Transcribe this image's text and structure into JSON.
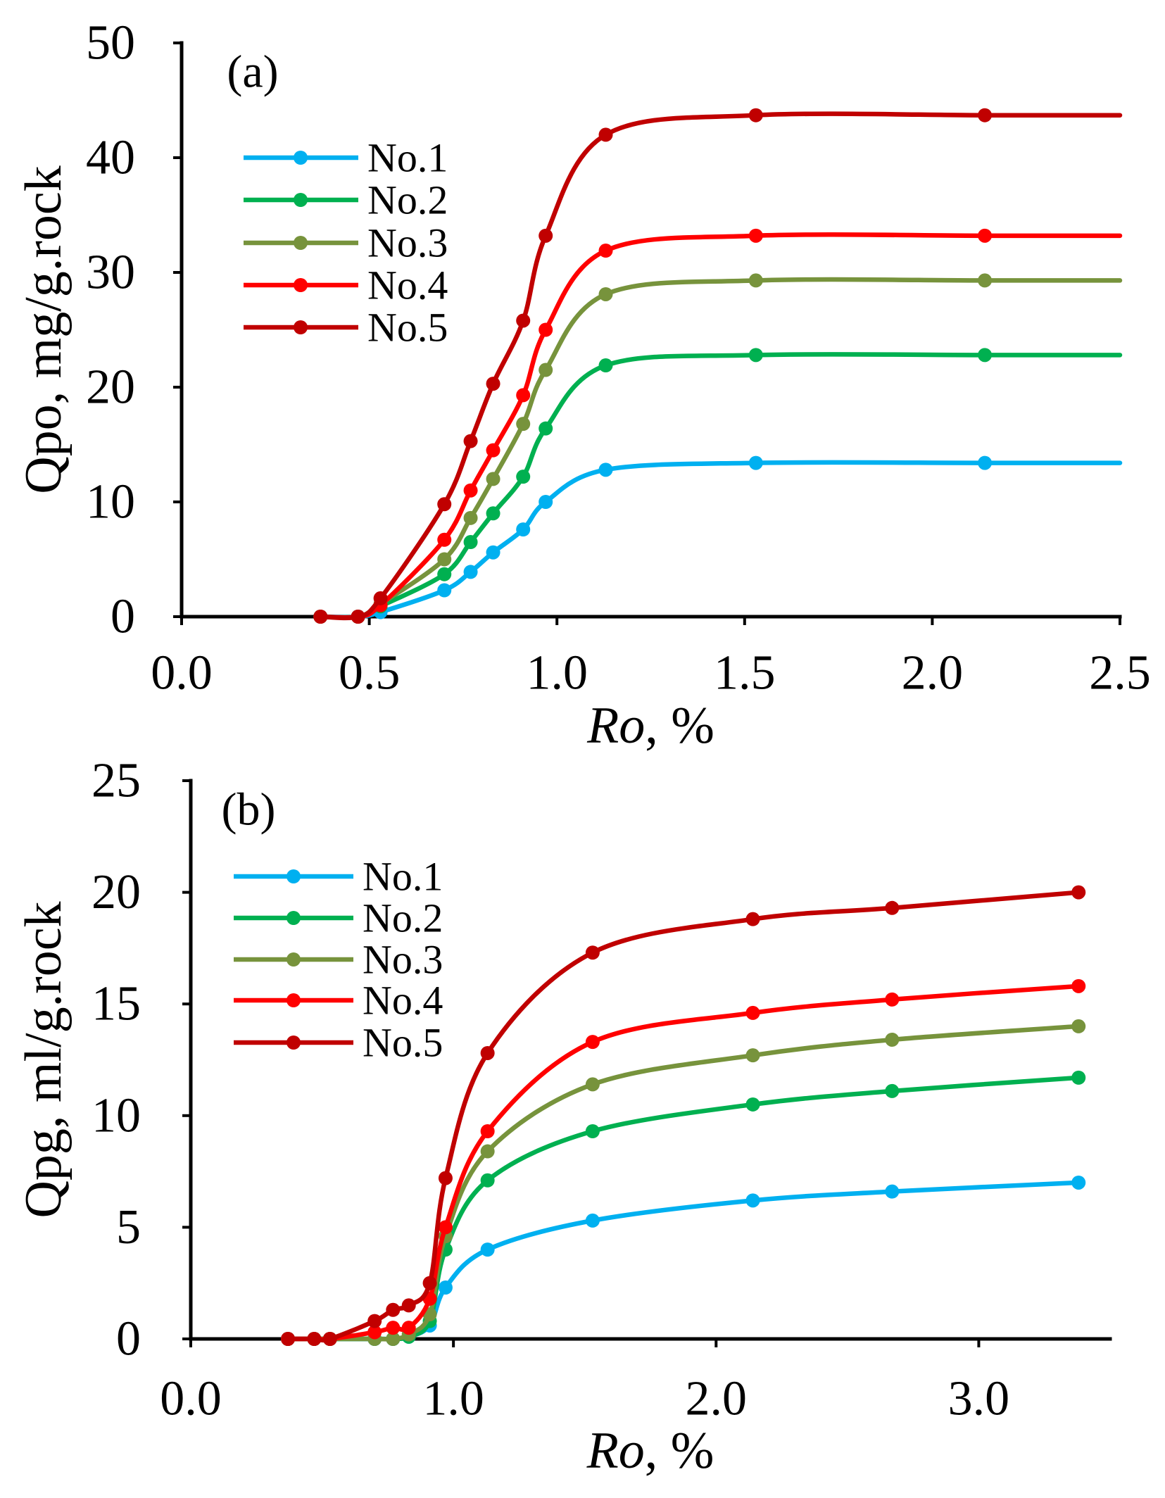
{
  "chart_data": [
    {
      "type": "line",
      "panel_label": "(a)",
      "title": "",
      "xlabel": {
        "variable": "Ro",
        "suffix": ", %"
      },
      "ylabel": "Qpo, mg/g.rock",
      "xlim": [
        0,
        2.5
      ],
      "ylim": [
        0,
        50
      ],
      "xticks": [
        0,
        0.5,
        1.0,
        1.5,
        2.0,
        2.5
      ],
      "xtick_labels": [
        "0.0",
        "0.5",
        "1.0",
        "1.5",
        "2.0",
        "2.5"
      ],
      "yticks": [
        0,
        10,
        20,
        30,
        40,
        50
      ],
      "ytick_labels": [
        "0",
        "10",
        "20",
        "30",
        "40",
        "50"
      ],
      "grid": false,
      "legend_position": "upper-left",
      "smooth": true,
      "line_continues_to_xmax": true,
      "x": [
        0.37,
        0.47,
        0.53,
        0.7,
        0.77,
        0.83,
        0.91,
        0.97,
        1.13,
        1.53,
        2.14
      ],
      "series": [
        {
          "name": "No.1",
          "color": "#00B0F0",
          "values": [
            0,
            0,
            0.4,
            2.3,
            3.9,
            5.6,
            7.6,
            10.0,
            12.8,
            13.4,
            13.4
          ]
        },
        {
          "name": "No.2",
          "color": "#00B050",
          "values": [
            0,
            0,
            0.9,
            3.7,
            6.5,
            9.0,
            12.2,
            16.4,
            21.9,
            22.8,
            22.8
          ]
        },
        {
          "name": "No.3",
          "color": "#77933C",
          "values": [
            0,
            0,
            1.1,
            5.0,
            8.6,
            12.0,
            16.8,
            21.5,
            28.1,
            29.3,
            29.3
          ]
        },
        {
          "name": "No.4",
          "color": "#FF0000",
          "values": [
            0,
            0,
            1.0,
            6.7,
            11.0,
            14.5,
            19.3,
            25.0,
            31.9,
            33.2,
            33.2
          ]
        },
        {
          "name": "No.5",
          "color": "#C00000",
          "values": [
            0,
            0,
            1.6,
            9.8,
            15.3,
            20.3,
            25.8,
            33.2,
            42.0,
            43.7,
            43.7
          ]
        }
      ]
    },
    {
      "type": "line",
      "panel_label": "(b)",
      "title": "",
      "xlabel": {
        "variable": "Ro",
        "suffix": ", %"
      },
      "ylabel": "Qpg, ml/g.rock",
      "xlim": [
        0,
        3.5
      ],
      "ylim": [
        0,
        25
      ],
      "xticks": [
        0,
        1.0,
        2.0,
        3.0
      ],
      "xtick_labels": [
        "0.0",
        "1.0",
        "2.0",
        "3.0"
      ],
      "yticks": [
        0,
        5,
        10,
        15,
        20,
        25
      ],
      "ytick_labels": [
        "0",
        "5",
        "10",
        "15",
        "20",
        "25"
      ],
      "grid": false,
      "legend_position": "upper-left",
      "smooth": true,
      "line_continues_to_xmax": false,
      "x": [
        0.37,
        0.47,
        0.53,
        0.7,
        0.77,
        0.83,
        0.91,
        0.97,
        1.13,
        1.53,
        2.14,
        2.67,
        3.38
      ],
      "series": [
        {
          "name": "No.1",
          "color": "#00B0F0",
          "values": [
            0,
            0,
            0,
            0,
            0,
            0.1,
            0.6,
            2.3,
            4.0,
            5.3,
            6.2,
            6.6,
            7.0
          ]
        },
        {
          "name": "No.2",
          "color": "#00B050",
          "values": [
            0,
            0,
            0,
            0,
            0,
            0.1,
            0.8,
            4.0,
            7.1,
            9.3,
            10.5,
            11.1,
            11.7
          ]
        },
        {
          "name": "No.3",
          "color": "#77933C",
          "values": [
            0,
            0,
            0,
            0,
            0,
            0.2,
            1.1,
            4.6,
            8.4,
            11.4,
            12.7,
            13.4,
            14.0
          ]
        },
        {
          "name": "No.4",
          "color": "#FF0000",
          "values": [
            0,
            0,
            0,
            0.3,
            0.5,
            0.5,
            1.8,
            5.0,
            9.3,
            13.3,
            14.6,
            15.2,
            15.8
          ]
        },
        {
          "name": "No.5",
          "color": "#C00000",
          "values": [
            0,
            0,
            0,
            0.8,
            1.3,
            1.5,
            2.5,
            7.2,
            12.8,
            17.3,
            18.8,
            19.3,
            20.0
          ]
        }
      ]
    }
  ]
}
